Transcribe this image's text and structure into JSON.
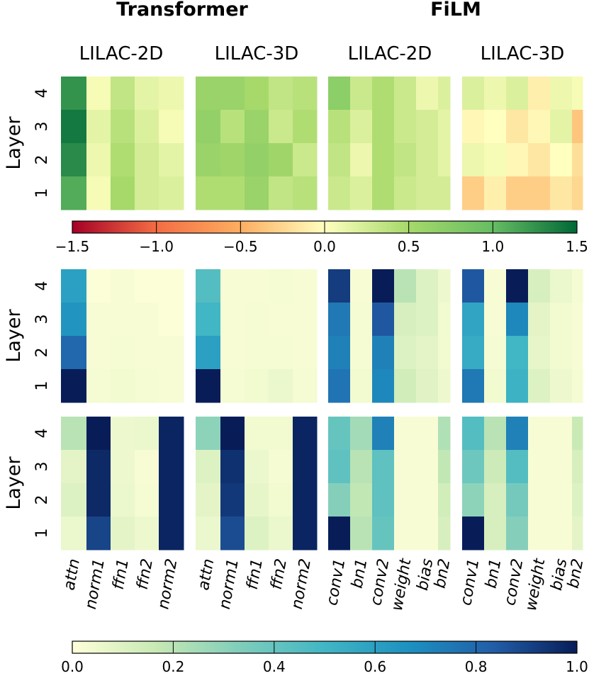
{
  "titles": {
    "left": "Transformer",
    "right": "FiLM"
  },
  "subtitles": [
    "LILAC-2D",
    "LILAC-3D",
    "LILAC-2D",
    "LILAC-3D"
  ],
  "y_axis_label": "Layer",
  "layer_labels": [
    "4",
    "3",
    "2",
    "1"
  ],
  "x_labels": {
    "transformer": [
      "attn",
      "norm1",
      "ffn1",
      "ffn2",
      "norm2"
    ],
    "film": [
      "conv1",
      "bn1",
      "conv2",
      "weight",
      "bias",
      "bn2"
    ]
  },
  "colorbars": [
    {
      "name": "diverging",
      "min": -1.5,
      "max": 1.5,
      "ticks": [
        "−1.5",
        "−1.0",
        "−0.5",
        "0.0",
        "0.5",
        "1.0",
        "1.5"
      ],
      "tick_values": [
        -1.5,
        -1.0,
        -0.5,
        0.0,
        0.5,
        1.0,
        1.5
      ]
    },
    {
      "name": "sequential",
      "min": 0.0,
      "max": 1.0,
      "ticks": [
        "0.0",
        "0.2",
        "0.4",
        "0.6",
        "0.8",
        "1.0"
      ],
      "tick_values": [
        0.0,
        0.2,
        0.4,
        0.6,
        0.8,
        1.0
      ]
    }
  ],
  "colormaps": {
    "diverging": [
      "#a50026",
      "#f46d43",
      "#fdae61",
      "#ffffbf",
      "#a6d96a",
      "#66bd63",
      "#006837"
    ],
    "sequential": [
      "#ffffd9",
      "#c7e9b4",
      "#7fcdbb",
      "#41b6c4",
      "#1d91c0",
      "#225ea8",
      "#081d58"
    ]
  },
  "chart_data": [
    {
      "type": "heatmap",
      "row": "top",
      "colormap": "diverging",
      "vmin": -1.5,
      "vmax": 1.5,
      "layers": [
        4,
        3,
        2,
        1
      ],
      "panels": [
        {
          "model": "Transformer",
          "method": "LILAC-2D",
          "columns": [
            "attn",
            "norm1",
            "ffn1",
            "ffn2",
            "norm2"
          ],
          "values": [
            [
              1.25,
              0.05,
              0.35,
              0.15,
              0.1
            ],
            [
              1.4,
              0.15,
              0.4,
              0.2,
              0.05
            ],
            [
              1.3,
              0.1,
              0.45,
              0.25,
              0.15
            ],
            [
              1.1,
              0.05,
              0.5,
              0.25,
              0.2
            ]
          ]
        },
        {
          "model": "Transformer",
          "method": "LILAC-3D",
          "columns": [
            "attn",
            "norm1",
            "ffn1",
            "ffn2",
            "norm2"
          ],
          "values": [
            [
              0.6,
              0.6,
              0.5,
              0.35,
              0.4
            ],
            [
              0.65,
              0.4,
              0.6,
              0.3,
              0.45
            ],
            [
              0.6,
              0.55,
              0.65,
              0.55,
              0.3
            ],
            [
              0.45,
              0.45,
              0.6,
              0.35,
              0.4
            ]
          ]
        },
        {
          "model": "FiLM",
          "method": "LILAC-2D",
          "columns": [
            "conv1",
            "bn1",
            "conv2",
            "weight",
            "bias",
            "bn2"
          ],
          "values": [
            [
              0.7,
              0.3,
              0.45,
              0.3,
              0.1,
              0.2
            ],
            [
              0.4,
              0.2,
              0.45,
              0.3,
              0.25,
              0.15
            ],
            [
              0.35,
              0.1,
              0.45,
              0.35,
              0.25,
              0.15
            ],
            [
              0.3,
              0.2,
              0.45,
              0.3,
              0.25,
              0.25
            ]
          ]
        },
        {
          "model": "FiLM",
          "method": "LILAC-3D",
          "columns": [
            "conv1",
            "bn1",
            "conv2",
            "weight",
            "bias",
            "bn2"
          ],
          "values": [
            [
              0.2,
              0.1,
              0.2,
              -0.1,
              0.1,
              0.05
            ],
            [
              -0.05,
              0.0,
              -0.15,
              -0.05,
              0.15,
              -0.35
            ],
            [
              0.1,
              0.05,
              -0.05,
              -0.15,
              0.0,
              -0.2
            ],
            [
              -0.3,
              -0.1,
              -0.3,
              -0.3,
              -0.15,
              -0.25
            ]
          ]
        }
      ]
    },
    {
      "type": "heatmap",
      "row": "middle",
      "colormap": "sequential",
      "vmin": 0.0,
      "vmax": 1.0,
      "layers": [
        4,
        3,
        2,
        1
      ],
      "panels": [
        {
          "model": "Transformer",
          "method": "LILAC-2D",
          "columns": [
            "attn",
            "norm1",
            "ffn1",
            "ffn2",
            "norm2"
          ],
          "values": [
            [
              0.6,
              0.01,
              0.02,
              0.01,
              0.01
            ],
            [
              0.65,
              0.02,
              0.02,
              0.02,
              0.01
            ],
            [
              0.8,
              0.02,
              0.03,
              0.02,
              0.02
            ],
            [
              1.0,
              0.03,
              0.04,
              0.03,
              0.02
            ]
          ]
        },
        {
          "model": "Transformer",
          "method": "LILAC-3D",
          "columns": [
            "attn",
            "norm1",
            "ffn1",
            "ffn2",
            "norm2"
          ],
          "values": [
            [
              0.45,
              0.02,
              0.02,
              0.03,
              0.02
            ],
            [
              0.5,
              0.02,
              0.03,
              0.02,
              0.02
            ],
            [
              0.6,
              0.02,
              0.03,
              0.03,
              0.02
            ],
            [
              1.0,
              0.03,
              0.04,
              0.06,
              0.03
            ]
          ]
        },
        {
          "model": "FiLM",
          "method": "LILAC-2D",
          "columns": [
            "conv1",
            "bn1",
            "conv2",
            "weight",
            "bias",
            "bn2"
          ],
          "values": [
            [
              0.92,
              0.02,
              1.0,
              0.2,
              0.1,
              0.05
            ],
            [
              0.75,
              0.03,
              0.85,
              0.12,
              0.1,
              0.04
            ],
            [
              0.72,
              0.03,
              0.72,
              0.1,
              0.08,
              0.04
            ],
            [
              0.76,
              0.04,
              0.7,
              0.14,
              0.09,
              0.05
            ]
          ]
        },
        {
          "model": "FiLM",
          "method": "LILAC-3D",
          "columns": [
            "conv1",
            "bn1",
            "conv2",
            "weight",
            "bias",
            "bn2"
          ],
          "values": [
            [
              0.85,
              0.02,
              1.0,
              0.12,
              0.06,
              0.03
            ],
            [
              0.58,
              0.02,
              0.7,
              0.08,
              0.04,
              0.02
            ],
            [
              0.55,
              0.03,
              0.5,
              0.07,
              0.04,
              0.02
            ],
            [
              0.75,
              0.04,
              0.52,
              0.1,
              0.05,
              0.03
            ]
          ]
        }
      ]
    },
    {
      "type": "heatmap",
      "row": "bottom",
      "colormap": "sequential",
      "vmin": 0.0,
      "vmax": 1.0,
      "layers": [
        4,
        3,
        2,
        1
      ],
      "panels": [
        {
          "model": "Transformer",
          "method": "LILAC-2D",
          "columns": [
            "attn",
            "norm1",
            "ffn1",
            "ffn2",
            "norm2"
          ],
          "values": [
            [
              0.2,
              1.0,
              0.05,
              0.06,
              0.98
            ],
            [
              0.08,
              0.97,
              0.05,
              0.02,
              0.98
            ],
            [
              0.1,
              0.97,
              0.06,
              0.03,
              0.98
            ],
            [
              0.06,
              0.9,
              0.08,
              0.05,
              0.98
            ]
          ]
        },
        {
          "model": "Transformer",
          "method": "LILAC-3D",
          "columns": [
            "attn",
            "norm1",
            "ffn1",
            "ffn2",
            "norm2"
          ],
          "values": [
            [
              0.3,
              1.0,
              0.04,
              0.04,
              0.98
            ],
            [
              0.1,
              0.95,
              0.06,
              0.03,
              0.98
            ],
            [
              0.08,
              0.93,
              0.07,
              0.04,
              0.98
            ],
            [
              0.06,
              0.88,
              0.1,
              0.06,
              0.98
            ]
          ]
        },
        {
          "model": "FiLM",
          "method": "LILAC-2D",
          "columns": [
            "conv1",
            "bn1",
            "conv2",
            "weight",
            "bias",
            "bn2"
          ],
          "values": [
            [
              0.4,
              0.25,
              0.72,
              0.02,
              0.02,
              0.22
            ],
            [
              0.42,
              0.2,
              0.42,
              0.02,
              0.02,
              0.18
            ],
            [
              0.32,
              0.18,
              0.42,
              0.02,
              0.02,
              0.14
            ],
            [
              1.0,
              0.2,
              0.4,
              0.02,
              0.02,
              0.12
            ]
          ]
        },
        {
          "model": "FiLM",
          "method": "LILAC-3D",
          "columns": [
            "conv1",
            "bn1",
            "conv2",
            "weight",
            "bias",
            "bn2"
          ],
          "values": [
            [
              0.45,
              0.2,
              0.72,
              0.02,
              0.02,
              0.16
            ],
            [
              0.38,
              0.15,
              0.45,
              0.02,
              0.02,
              0.12
            ],
            [
              0.3,
              0.12,
              0.36,
              0.02,
              0.02,
              0.1
            ],
            [
              1.0,
              0.12,
              0.32,
              0.02,
              0.02,
              0.08
            ]
          ]
        }
      ]
    }
  ]
}
